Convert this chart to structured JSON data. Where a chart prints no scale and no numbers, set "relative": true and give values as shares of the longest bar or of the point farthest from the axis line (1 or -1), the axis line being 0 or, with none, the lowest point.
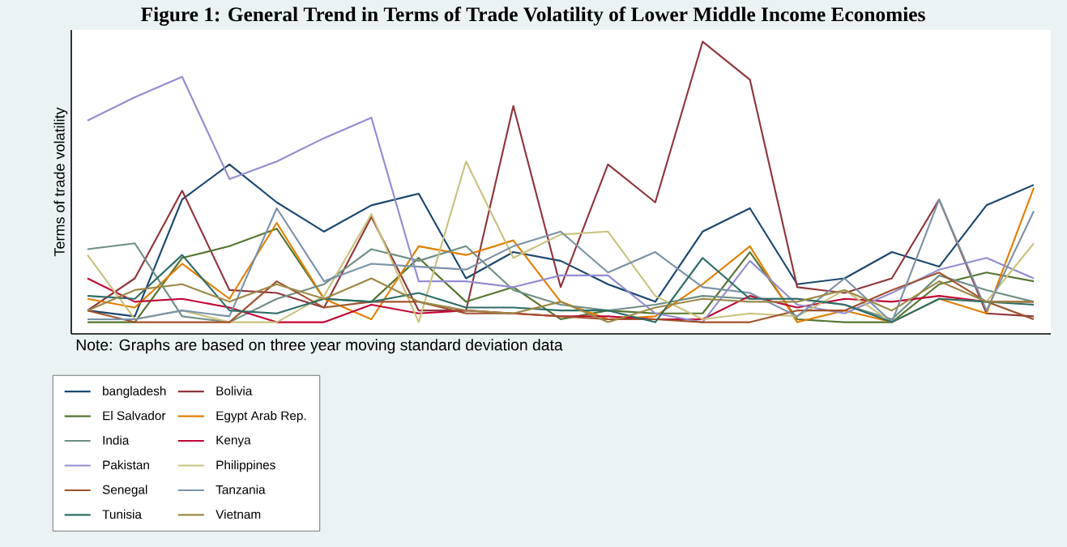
{
  "chart_data": {
    "type": "line",
    "title": "Figure 1: General Trend in Terms of Trade Volatility of Lower Middle Income Economies",
    "ylabel": "Terms of trade volatility",
    "annotations": [
      "Note: Graphs are based on three year moving standard deviation data"
    ],
    "relative": true,
    "legend": "bottom",
    "marker": "none",
    "line_style": "solid",
    "categories": [
      null,
      null,
      null,
      null,
      null,
      null,
      null,
      null,
      null,
      null,
      null,
      null,
      null,
      null,
      null,
      null,
      null,
      null,
      null,
      null,
      null
    ],
    "series": [
      {
        "name": "bangladesh",
        "color": "#1a476f",
        "values": [
          0.08,
          0.06,
          0.46,
          0.58,
          0.45,
          0.35,
          0.44,
          0.48,
          0.19,
          0.28,
          0.25,
          0.17,
          0.11,
          0.35,
          0.43,
          0.17,
          0.19,
          0.28,
          0.23,
          0.44,
          0.51
        ]
      },
      {
        "name": "Bolivia",
        "color": "#90353b",
        "values": [
          0.08,
          0.19,
          0.49,
          0.15,
          0.14,
          0.09,
          0.4,
          0.08,
          0.08,
          0.78,
          0.16,
          0.58,
          0.45,
          1,
          0.87,
          0.16,
          0.14,
          0.19,
          0.46,
          0.07,
          0.06
        ]
      },
      {
        "name": "El Salvador",
        "color": "#55752f",
        "values": [
          0.04,
          0.04,
          0.26,
          0.3,
          0.36,
          0.12,
          0.11,
          0.26,
          0.11,
          0.16,
          0.05,
          0.08,
          0.07,
          0.07,
          0.28,
          0.05,
          0.04,
          0.04,
          0.17,
          0.21,
          0.18
        ]
      },
      {
        "name": "Egypt Arab Rep.",
        "color": "#e37e00",
        "values": [
          0.12,
          0.09,
          0.24,
          0.12,
          0.38,
          0.12,
          0.05,
          0.3,
          0.27,
          0.32,
          0.11,
          0.05,
          0.06,
          0.17,
          0.3,
          0.04,
          0.08,
          0.04,
          0.12,
          0.07,
          0.5
        ]
      },
      {
        "name": "India",
        "color": "#6e8e84",
        "values": [
          0.29,
          0.31,
          0.06,
          0.04,
          0.12,
          0.17,
          0.29,
          0.25,
          0.3,
          0.15,
          0.1,
          0.08,
          0.1,
          0.13,
          0.12,
          0.12,
          0.1,
          0.05,
          0.2,
          0.15,
          0.11
        ]
      },
      {
        "name": "Kenya",
        "color": "#c10534",
        "values": [
          0.19,
          0.11,
          0.12,
          0.09,
          0.04,
          0.04,
          0.1,
          0.07,
          0.08,
          0.07,
          0.06,
          0.06,
          0.05,
          0.05,
          0.13,
          0.09,
          0.12,
          0.11,
          0.13,
          0.11,
          0.11
        ]
      },
      {
        "name": "Pakistan",
        "color": "#938dd2",
        "values": [
          0.73,
          0.81,
          0.88,
          0.53,
          0.59,
          0.67,
          0.74,
          0.18,
          0.18,
          0.16,
          0.2,
          0.2,
          0.07,
          0.04,
          0.25,
          0.1,
          0.07,
          0.14,
          0.22,
          0.26,
          0.19
        ]
      },
      {
        "name": "Philippines",
        "color": "#cac27e",
        "values": [
          0.27,
          0.05,
          0.08,
          0.04,
          0.04,
          0.13,
          0.41,
          0.04,
          0.59,
          0.26,
          0.34,
          0.35,
          0.13,
          0.05,
          0.07,
          0.06,
          0.15,
          0.04,
          0.12,
          0.11,
          0.31
        ]
      },
      {
        "name": "Senegal",
        "color": "#a0522d",
        "values": [
          0.08,
          0.04,
          0.04,
          0.04,
          0.18,
          0.09,
          0.11,
          0.11,
          0.07,
          0.07,
          0.06,
          0.05,
          0.05,
          0.04,
          0.04,
          0.08,
          0.08,
          0.15,
          0.21,
          0.11,
          0.05
        ]
      },
      {
        "name": "Tanzania",
        "color": "#7b92a8",
        "values": [
          0.05,
          0.05,
          0.08,
          0.06,
          0.43,
          0.18,
          0.24,
          0.23,
          0.22,
          0.3,
          0.35,
          0.21,
          0.28,
          0.16,
          0.14,
          0.06,
          0.19,
          0.04,
          0.46,
          0.08,
          0.42
        ]
      },
      {
        "name": "Tunisia",
        "color": "#2d6d66",
        "values": [
          0.13,
          0.12,
          0.27,
          0.08,
          0.07,
          0.12,
          0.11,
          0.14,
          0.09,
          0.09,
          0.08,
          0.08,
          0.04,
          0.26,
          0.12,
          0.12,
          0.1,
          0.04,
          0.12,
          0.11,
          0.1
        ]
      },
      {
        "name": "Vietnam",
        "color": "#9c8847",
        "values": [
          0.08,
          0.15,
          0.17,
          0.11,
          0.17,
          0.12,
          0.19,
          0.11,
          0.08,
          0.07,
          0.11,
          0.04,
          0.09,
          0.12,
          0.11,
          0.11,
          0.15,
          0.08,
          0.18,
          0.11,
          0.11
        ]
      }
    ]
  }
}
